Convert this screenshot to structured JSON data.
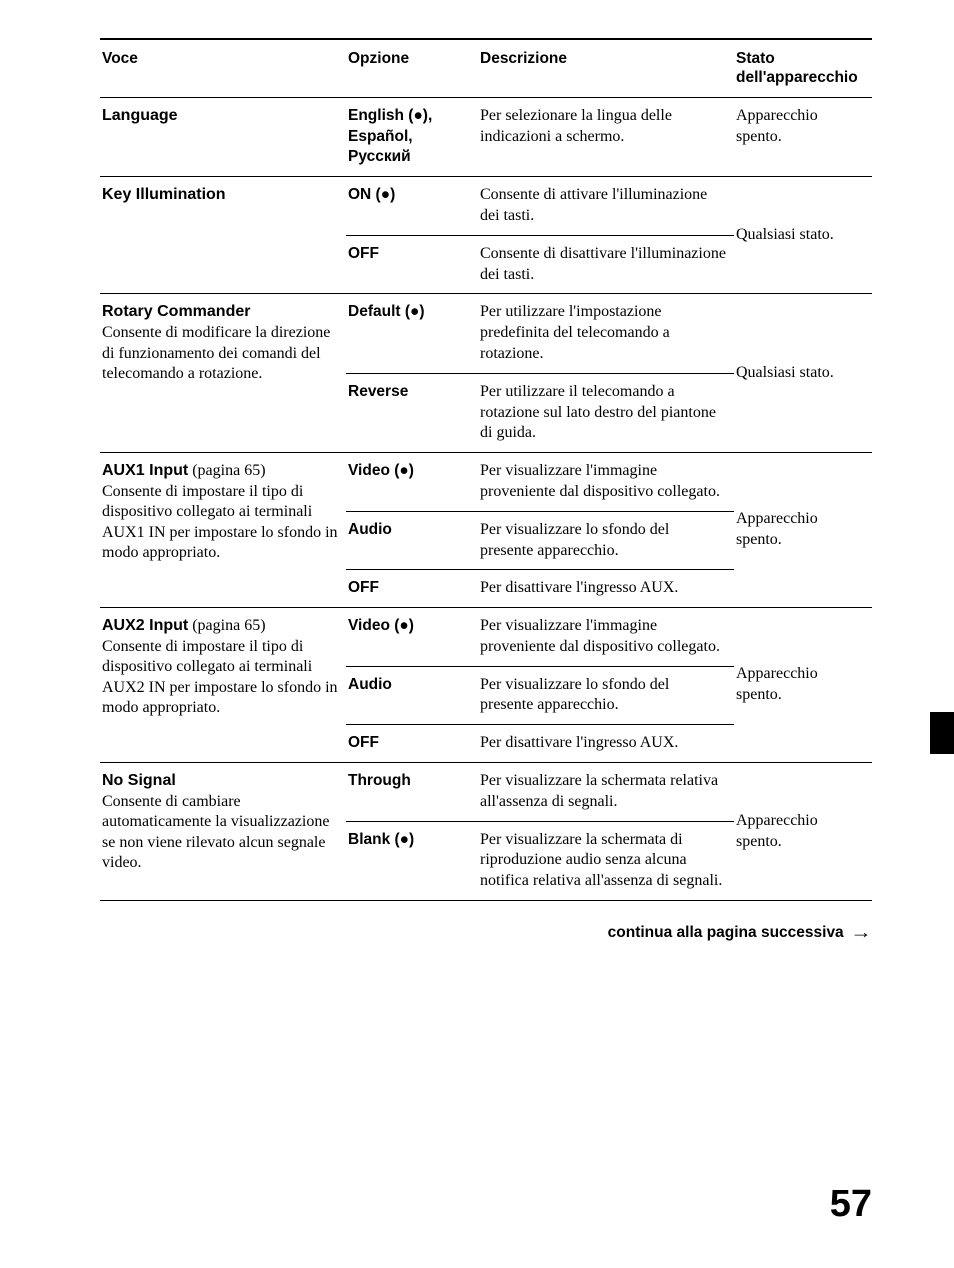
{
  "headers": {
    "voce": "Voce",
    "opzione": "Opzione",
    "descrizione": "Descrizione",
    "stato": "Stato dell'apparecchio"
  },
  "rows": {
    "language": {
      "title": "Language",
      "option": "English (●), Español, Русский",
      "desc": "Per selezionare la lingua delle indicazioni a schermo.",
      "state": "Apparecchio spento."
    },
    "key_illum": {
      "title": "Key Illumination",
      "on_option": "ON (●)",
      "on_desc": "Consente di attivare l'illuminazione dei tasti.",
      "off_option": "OFF",
      "off_desc": "Consente di disattivare l'illuminazione dei tasti.",
      "state": "Qualsiasi stato."
    },
    "rotary": {
      "title": "Rotary Commander",
      "subtitle": "Consente di modificare la direzione di funzionamento dei comandi del telecomando a rotazione.",
      "def_option": "Default (●)",
      "def_desc": "Per utilizzare l'impostazione predefinita del telecomando a rotazione.",
      "rev_option": "Reverse",
      "rev_desc": "Per utilizzare il telecomando a rotazione sul lato destro del piantone di guida.",
      "state": "Qualsiasi stato."
    },
    "aux1": {
      "title": "AUX1 Input",
      "ref": " (pagina 65)",
      "subtitle": "Consente di impostare il tipo di dispositivo collegato ai terminali AUX1 IN per impostare lo sfondo in modo appropriato.",
      "video_option": "Video (●)",
      "video_desc": "Per visualizzare l'immagine proveniente dal dispositivo collegato.",
      "audio_option": "Audio",
      "audio_desc": "Per visualizzare lo sfondo del presente apparecchio.",
      "off_option": "OFF",
      "off_desc": "Per disattivare l'ingresso AUX.",
      "state": "Apparecchio spento."
    },
    "aux2": {
      "title": "AUX2 Input",
      "ref": " (pagina 65)",
      "subtitle": "Consente di impostare il tipo di dispositivo collegato ai terminali AUX2 IN per impostare lo sfondo in modo appropriato.",
      "video_option": "Video (●)",
      "video_desc": "Per visualizzare l'immagine proveniente dal dispositivo collegato.",
      "audio_option": "Audio",
      "audio_desc": "Per visualizzare lo sfondo del presente apparecchio.",
      "off_option": "OFF",
      "off_desc": "Per disattivare l'ingresso AUX.",
      "state": "Apparecchio spento."
    },
    "nosignal": {
      "title": "No Signal",
      "subtitle": "Consente di cambiare automaticamente la visualizzazione se non viene rilevato alcun segnale video.",
      "through_option": "Through",
      "through_desc": "Per visualizzare la schermata relativa all'assenza di segnali.",
      "blank_option": "Blank (●)",
      "blank_desc": "Per visualizzare la schermata di riproduzione audio senza alcuna notifica relativa all'assenza di segnali.",
      "state": "Apparecchio spento."
    }
  },
  "continue_text": "continua alla pagina successiva",
  "continue_arrow": "→",
  "page_number": "57"
}
